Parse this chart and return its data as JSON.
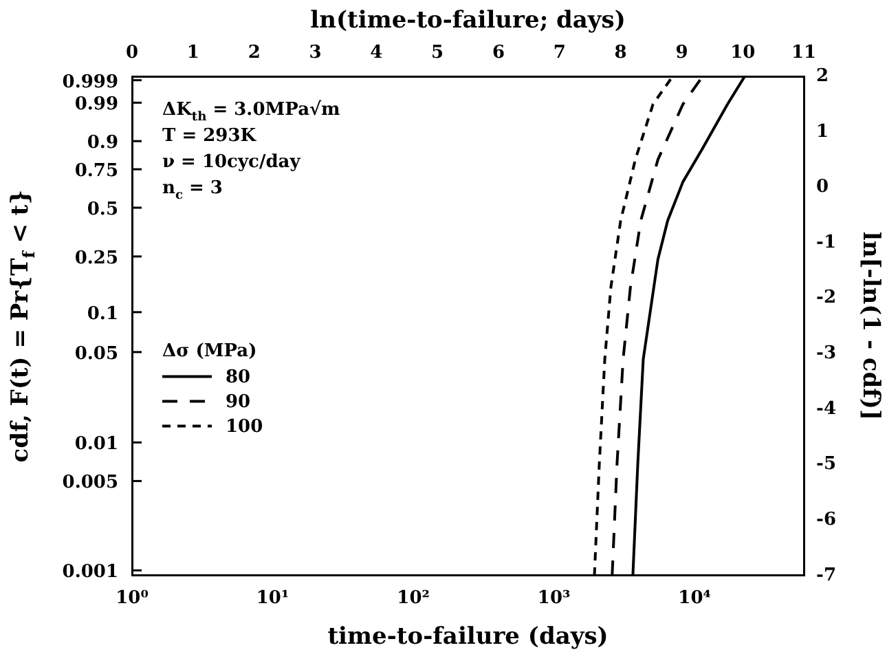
{
  "chart_data": {
    "type": "line",
    "xlabel": "time-to-failure (days)",
    "x2label": "ln(time-to-failure; days)",
    "ylabel": "ln[-ln(1 - cdf)]",
    "y2label": "cdf, F(t) = Pr{T$_{f}$ < t}",
    "legend_title": "Δσ (MPa)",
    "legend": "left",
    "marker": "none",
    "grid": false,
    "log": "x",
    "xlim": [
      1,
      59874
    ],
    "xticks": [
      {
        "value": 1,
        "label": "10⁰"
      },
      {
        "value": 10,
        "label": "10¹"
      },
      {
        "value": 100,
        "label": "10²"
      },
      {
        "value": 1000,
        "label": "10³"
      },
      {
        "value": 10000,
        "label": "10⁴"
      }
    ],
    "x2lim": [
      0,
      11
    ],
    "x2ticks": [
      0,
      1,
      2,
      3,
      4,
      5,
      6,
      7,
      8,
      9,
      10,
      11
    ],
    "ylim": [
      -7,
      2
    ],
    "yticks": [
      -7,
      -6,
      -5,
      -4,
      -3,
      -2,
      -1,
      0,
      1,
      2
    ],
    "annotations": [
      "ΔK$_{th}$ = 3.0MPa√m",
      "T = 293K",
      "ν = 10cyc/day",
      "n$_{c}$ = 3",
      "0.001",
      "0.005",
      "0.01",
      "0.05",
      "0.1",
      "0.25",
      "0.5",
      "0.75",
      "0.9",
      "0.99",
      "0.999"
    ],
    "series": [
      {
        "name": "80",
        "color": "#000000",
        "line_style": "solid",
        "x": [
          3641,
          3944,
          4316,
          4866,
          5486,
          6438,
          8267,
          11384,
          17154,
          22697
        ],
        "values": [
          -7,
          -5,
          -3.1,
          -2.2,
          -1.3,
          -0.6,
          0.1,
          0.7,
          1.5,
          2
        ]
      },
      {
        "name": "90",
        "color": "#000000",
        "line_style": "dashed",
        "x": [
          2594,
          2808,
          3104,
          3498,
          4146,
          5486,
          8267,
          11384
        ],
        "values": [
          -7,
          -5,
          -3.1,
          -1.8,
          -0.6,
          0.5,
          1.5,
          2
        ]
      },
      {
        "name": "100",
        "color": "#000000",
        "line_style": "dashed",
        "x": [
          1940,
          2101,
          2299,
          2541,
          2981,
          3790,
          5064,
          6974
        ],
        "values": [
          -7,
          -5,
          -3.1,
          -1.8,
          -0.6,
          0.5,
          1.5,
          2
        ]
      }
    ]
  }
}
